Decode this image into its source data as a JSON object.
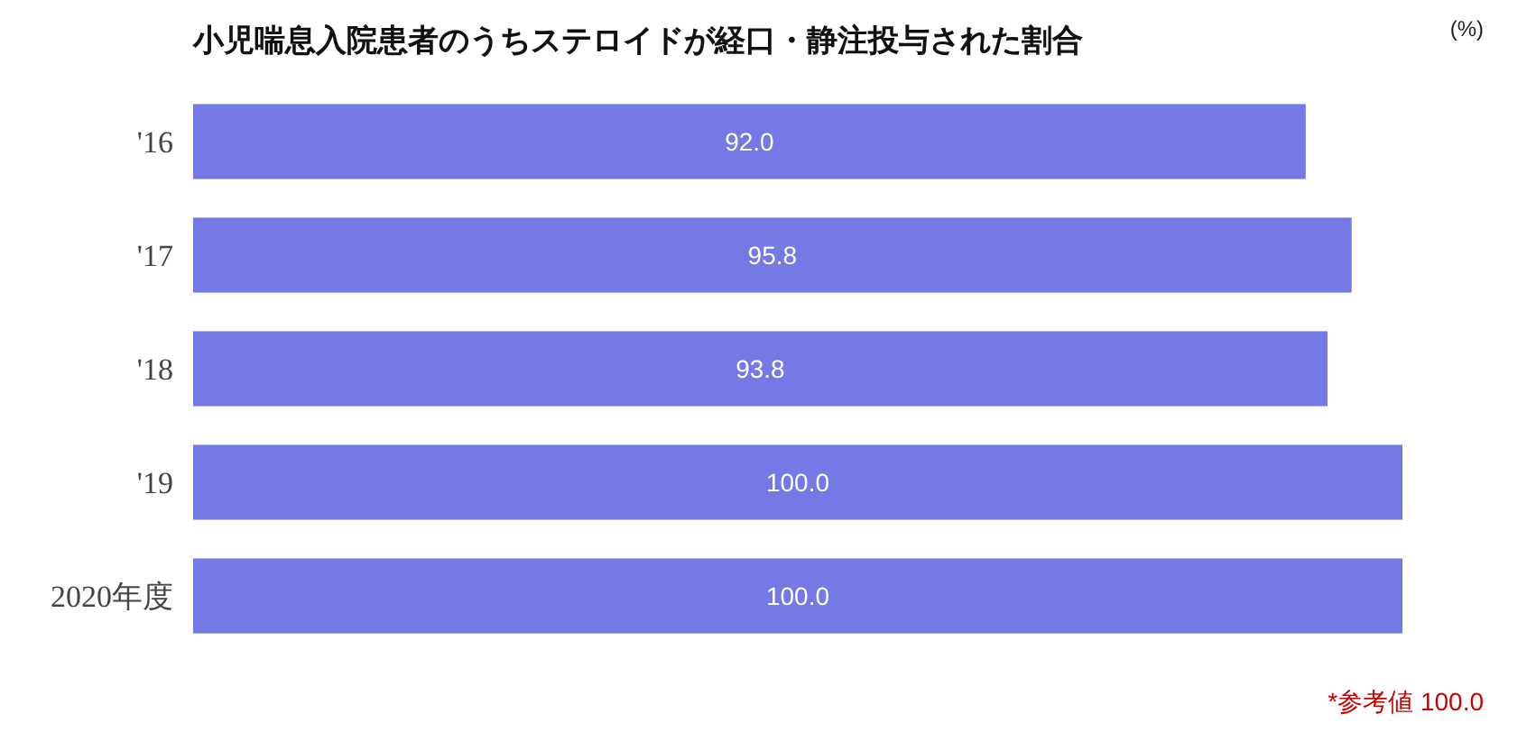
{
  "chart_data": {
    "type": "bar",
    "orientation": "horizontal",
    "title": "小児喘息入院患者のうちステロイドが経口・静注投与された割合",
    "categories": [
      "'16",
      "'17",
      "'18",
      "'19",
      "2020年度"
    ],
    "values": [
      92.0,
      95.8,
      93.8,
      100.0,
      100.0
    ],
    "value_labels": [
      "92.0",
      "95.8",
      "93.8",
      "100.0",
      "100.0"
    ],
    "color": "#7479e6",
    "annotations": [
      "(%)",
      "*参考値 100.0"
    ]
  }
}
